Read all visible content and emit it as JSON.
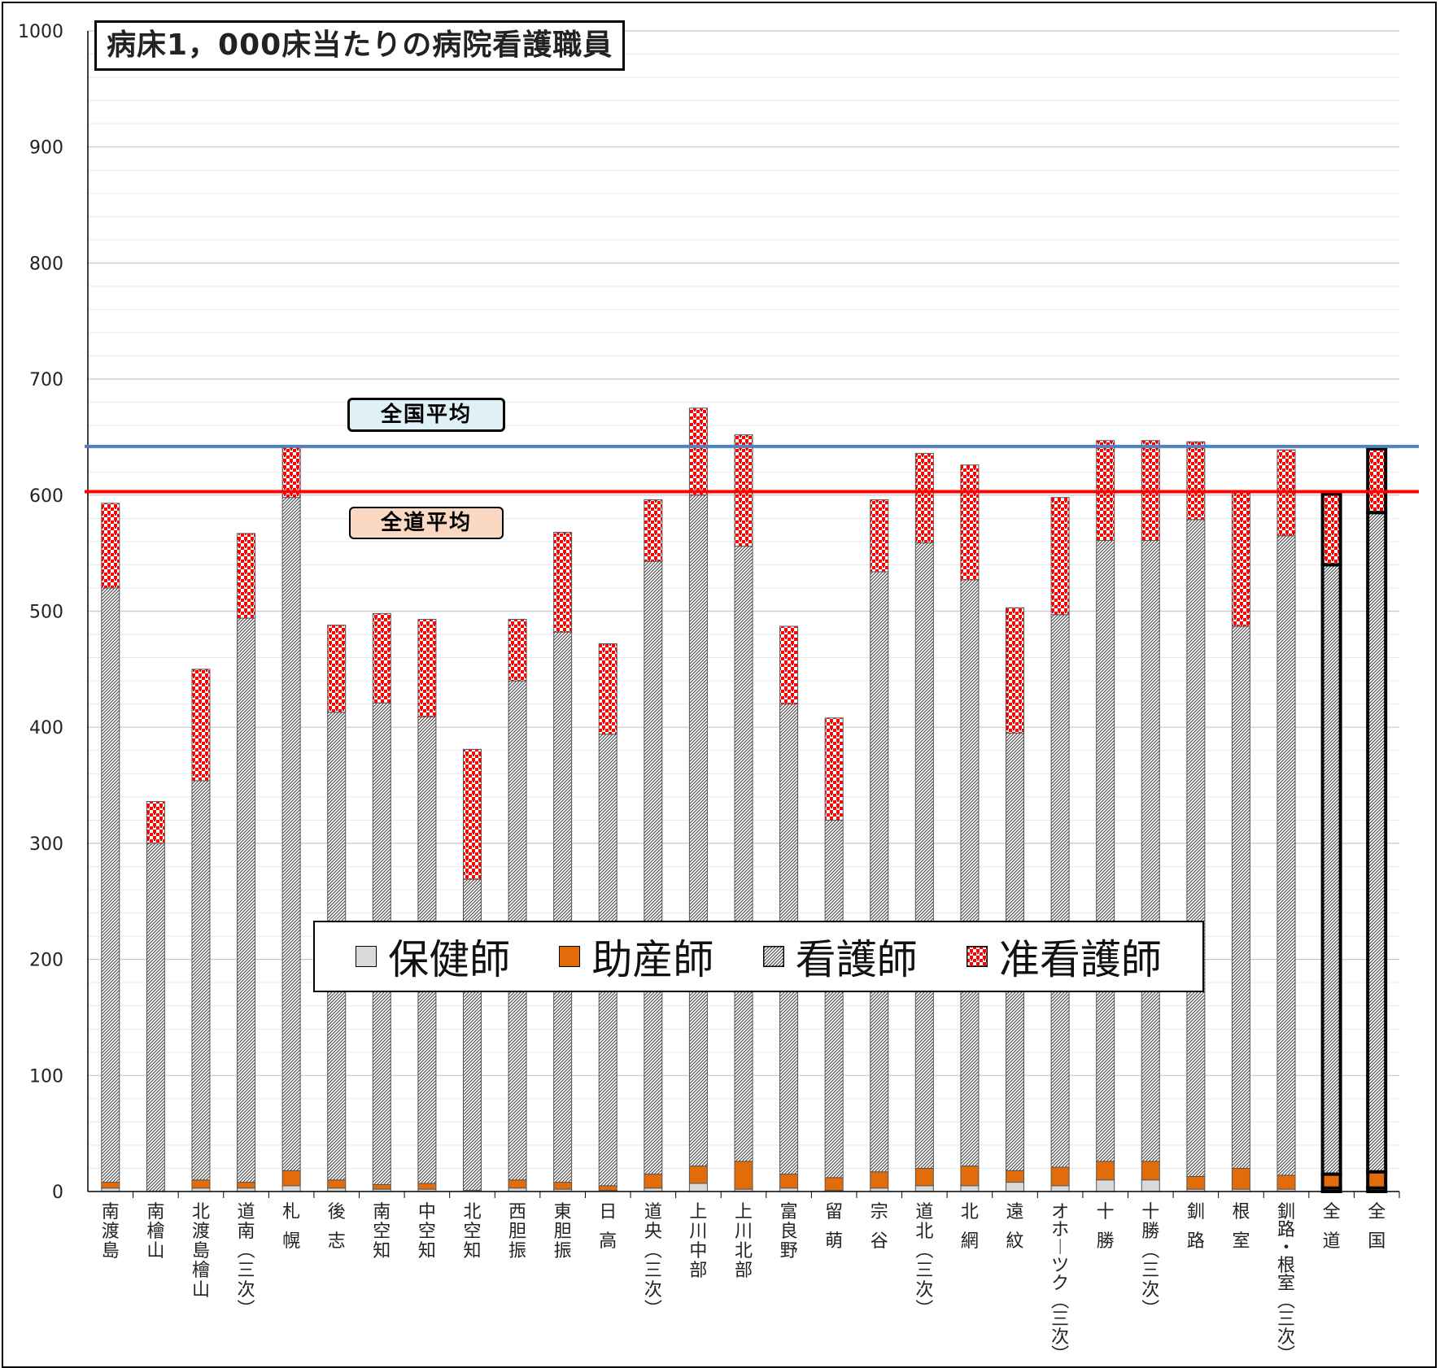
{
  "chart_data": {
    "type": "bar",
    "stacked": true,
    "title": "病床1，000床当たりの病院看護職員",
    "ylim": [
      0,
      1000
    ],
    "yticks": [
      0,
      100,
      200,
      300,
      400,
      500,
      600,
      700,
      800,
      900,
      1000
    ],
    "grid": true,
    "legend_position": "bottom-center",
    "categories": [
      "南渡島",
      "南檜山",
      "北渡島檜山",
      "道南(三次)",
      "札幌",
      "後志",
      "南空知",
      "中空知",
      "北空知",
      "西胆振",
      "東胆振",
      "日高",
      "道央(三次)",
      "上川中部",
      "上川北部",
      "富良野",
      "留萌",
      "宗谷",
      "道北(三次)",
      "北網",
      "遠紋",
      "オホーツク(三次)",
      "十勝",
      "十勝(三次)",
      "釧路",
      "根室",
      "釧路・根室(三次)",
      "全道",
      "全国"
    ],
    "series": [
      {
        "name": "保健師",
        "color": "#d9d9d9",
        "values": [
          3,
          0,
          3,
          3,
          5,
          3,
          2,
          2,
          1,
          3,
          2,
          1,
          3,
          7,
          2,
          3,
          1,
          3,
          5,
          5,
          8,
          5,
          10,
          10,
          2,
          2,
          2,
          3,
          3
        ]
      },
      {
        "name": "助産師",
        "color": "#e36c0a",
        "values": [
          5,
          0,
          7,
          5,
          13,
          7,
          4,
          5,
          0,
          7,
          6,
          4,
          12,
          15,
          24,
          12,
          11,
          14,
          15,
          17,
          10,
          16,
          16,
          16,
          11,
          18,
          12,
          12,
          14
        ]
      },
      {
        "name": "看護師",
        "color": "#a6a6a6",
        "values": [
          512,
          300,
          344,
          486,
          580,
          403,
          415,
          402,
          268,
          430,
          474,
          389,
          528,
          578,
          530,
          405,
          308,
          517,
          539,
          505,
          377,
          476,
          535,
          535,
          566,
          467,
          551,
          525,
          568
        ]
      },
      {
        "name": "准看護師",
        "color": "#ff0000",
        "values": [
          73,
          36,
          96,
          73,
          44,
          75,
          77,
          84,
          112,
          53,
          86,
          78,
          53,
          75,
          96,
          67,
          88,
          62,
          77,
          99,
          108,
          101,
          86,
          86,
          67,
          116,
          74,
          61,
          55
        ]
      }
    ],
    "reference_lines": [
      {
        "name": "全国平均",
        "value": 642,
        "color": "#4f81bd"
      },
      {
        "name": "全道平均",
        "value": 603,
        "color": "#ff0000"
      }
    ]
  },
  "labels": {
    "title": "病床1，000床当たりの病院看護職員",
    "national_avg": "全国平均",
    "hokkaido_avg": "全道平均"
  },
  "legend": [
    {
      "label": "保健師",
      "color": "#d9d9d9",
      "pattern": "solid"
    },
    {
      "label": "助産師",
      "color": "#e36c0a",
      "pattern": "solid"
    },
    {
      "label": "看護師",
      "color": "#a6a6a6",
      "pattern": "hatch"
    },
    {
      "label": "准看護師",
      "color": "#ff0000",
      "pattern": "dots"
    }
  ]
}
